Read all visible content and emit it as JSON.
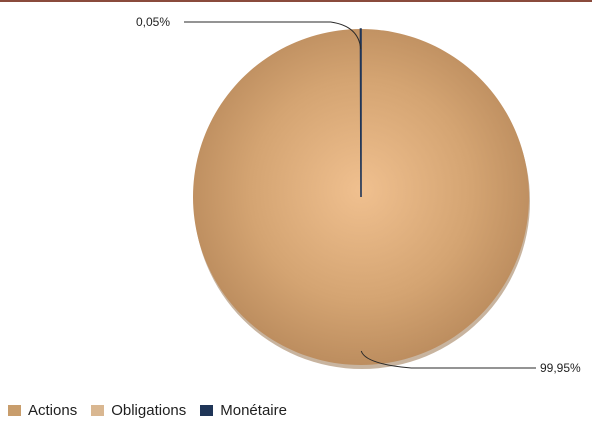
{
  "chart_data": {
    "type": "pie",
    "title": "",
    "legend_position": "bottom-left",
    "series": [
      {
        "name": "Actions",
        "value": 99.95,
        "label": "99,95%",
        "color": "#c89d6c"
      },
      {
        "name": "Obligations",
        "value": 0,
        "label": "",
        "color": "#d9b791"
      },
      {
        "name": "Monétaire",
        "value": 0.05,
        "label": "0,05%",
        "color": "#1f3557"
      }
    ]
  }
}
